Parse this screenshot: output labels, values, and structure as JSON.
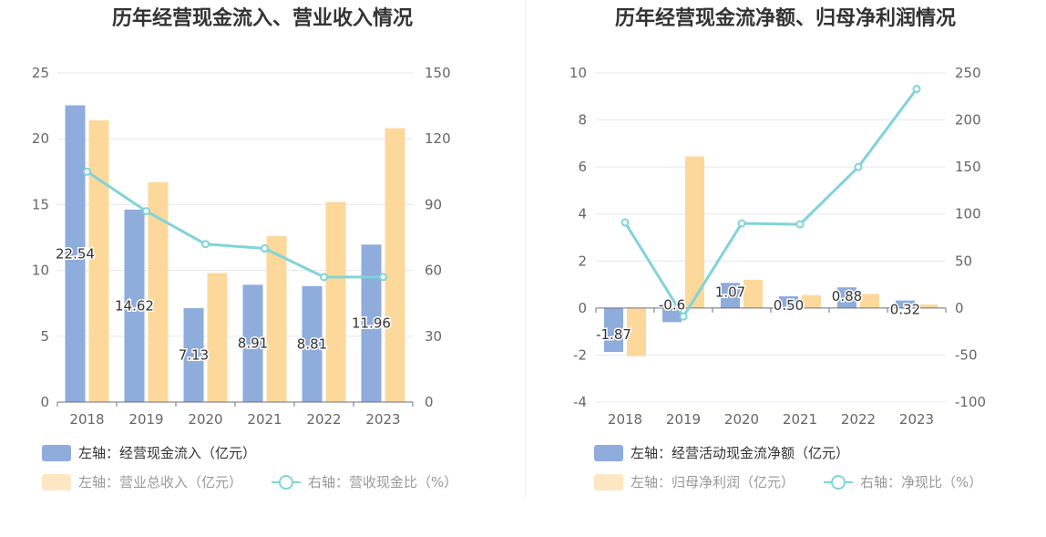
{
  "chart_data": [
    {
      "type": "bar",
      "title": "历年经营现金流入、营业收入情况",
      "categories": [
        "2018",
        "2019",
        "2020",
        "2021",
        "2022",
        "2023"
      ],
      "left_axis": {
        "ylim": [
          0,
          25
        ],
        "ticks": [
          "0",
          "5",
          "10",
          "15",
          "20",
          "25"
        ]
      },
      "right_axis": {
        "ylim": [
          0,
          150
        ],
        "ticks": [
          "0",
          "30",
          "60",
          "90",
          "120",
          "150"
        ]
      },
      "grid": true,
      "legend_position": "bottom-left",
      "series": [
        {
          "name": "左轴：经营现金流入（亿元）",
          "kind": "bar",
          "axis": "left",
          "color": "#8eacdc",
          "values": [
            22.54,
            14.62,
            7.13,
            8.91,
            8.81,
            11.96
          ],
          "labels": [
            "22.54",
            "14.62",
            "7.13",
            "8.91",
            "8.81",
            "11.96"
          ]
        },
        {
          "name": "左轴：营业总收入（亿元）",
          "kind": "bar",
          "axis": "left",
          "color": "#fdd89b",
          "values": [
            21.4,
            16.7,
            9.8,
            12.6,
            15.2,
            20.8
          ]
        },
        {
          "name": "右轴：营收现金比（%）",
          "kind": "line",
          "axis": "right",
          "color": "#80d4d8",
          "values": [
            105,
            87,
            72,
            70,
            57,
            57
          ]
        }
      ]
    },
    {
      "type": "bar",
      "title": "历年经营现金流净额、归母净利润情况",
      "categories": [
        "2018",
        "2019",
        "2020",
        "2021",
        "2022",
        "2023"
      ],
      "left_axis": {
        "ylim": [
          -4,
          10
        ],
        "ticks": [
          "-4",
          "-2",
          "0",
          "2",
          "4",
          "6",
          "8",
          "10"
        ]
      },
      "right_axis": {
        "ylim": [
          -100,
          250
        ],
        "ticks": [
          "-100",
          "-50",
          "0",
          "50",
          "100",
          "150",
          "200",
          "250"
        ]
      },
      "grid": true,
      "legend_position": "bottom-left",
      "series": [
        {
          "name": "左轴：经营活动现金流净额（亿元）",
          "kind": "bar",
          "axis": "left",
          "color": "#8eacdc",
          "values": [
            -1.87,
            -0.6,
            1.07,
            0.5,
            0.88,
            0.32
          ],
          "labels": [
            "-1.87",
            "-0.6",
            "1.07",
            "0.50",
            "0.88",
            "0.32"
          ]
        },
        {
          "name": "左轴：归母净利润（亿元）",
          "kind": "bar",
          "axis": "left",
          "color": "#fdd89b",
          "values": [
            -2.05,
            6.45,
            1.2,
            0.55,
            0.6,
            0.15
          ]
        },
        {
          "name": "右轴：净现比（%）",
          "kind": "line",
          "axis": "right",
          "color": "#80d4d8",
          "values": [
            91,
            -9,
            90,
            89,
            150,
            233
          ]
        }
      ]
    }
  ]
}
